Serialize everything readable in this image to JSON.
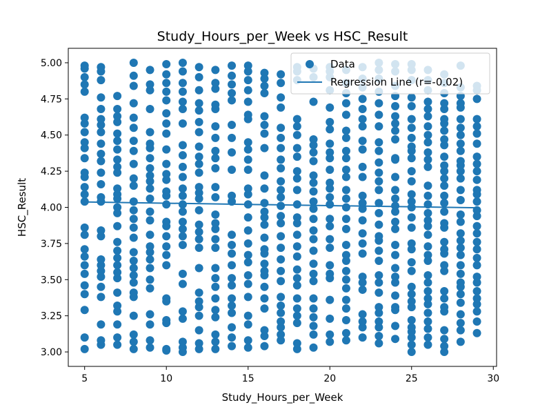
{
  "chart_data": {
    "type": "scatter",
    "title": "Study_Hours_per_Week vs HSC_Result",
    "xlabel": "Study_Hours_per_Week",
    "ylabel": "HSC_Result",
    "xlim": [
      4.0,
      30.2
    ],
    "ylim": [
      2.9,
      5.1
    ],
    "xticks": [
      5,
      10,
      15,
      20,
      25,
      30
    ],
    "yticks": [
      3.0,
      3.25,
      3.5,
      3.75,
      4.0,
      4.25,
      4.5,
      4.75,
      5.0
    ],
    "grid": false,
    "legend_position": "upper-right",
    "series": [
      {
        "name": "Data",
        "kind": "scatter",
        "color": "#1f77b4",
        "x_values": [
          5,
          6,
          7,
          8,
          9,
          10,
          11,
          12,
          13,
          14,
          15,
          16,
          17,
          18,
          19,
          20,
          21,
          22,
          23,
          24,
          25,
          26,
          27,
          28,
          29
        ],
        "y_values_by_x": {
          "5": [
            3.02,
            3.1,
            3.29,
            3.4,
            3.46,
            3.54,
            3.6,
            3.66,
            3.71,
            3.81,
            3.86,
            4.04,
            4.09,
            4.14,
            4.21,
            4.24,
            4.34,
            4.41,
            4.45,
            4.52,
            4.58,
            4.62,
            4.8,
            4.85,
            4.9,
            4.96,
            4.98
          ],
          "6": [
            3.05,
            3.08,
            3.19,
            3.38,
            3.45,
            3.52,
            3.56,
            3.6,
            3.64,
            3.8,
            3.84,
            4.04,
            4.07,
            4.16,
            4.24,
            4.32,
            4.37,
            4.44,
            4.52,
            4.57,
            4.61,
            4.68,
            4.76,
            4.88,
            4.94,
            4.97
          ],
          "7": [
            3.05,
            3.1,
            3.19,
            3.28,
            3.32,
            3.41,
            3.51,
            3.55,
            3.6,
            3.65,
            3.7,
            3.76,
            3.87,
            3.96,
            4.0,
            4.06,
            4.09,
            4.13,
            4.24,
            4.28,
            4.33,
            4.4,
            4.46,
            4.51,
            4.59,
            4.63,
            4.68,
            4.77
          ],
          "8": [
            3.02,
            3.07,
            3.12,
            3.25,
            3.38,
            3.41,
            3.48,
            3.53,
            3.58,
            3.63,
            3.69,
            3.79,
            3.86,
            3.92,
            3.98,
            4.04,
            4.15,
            4.2,
            4.3,
            4.39,
            4.46,
            4.55,
            4.62,
            4.72,
            4.84,
            4.91,
            5.0
          ],
          "9": [
            3.03,
            3.08,
            3.19,
            3.26,
            3.44,
            3.5,
            3.58,
            3.64,
            3.69,
            3.73,
            3.81,
            3.91,
            3.97,
            4.06,
            4.13,
            4.18,
            4.22,
            4.27,
            4.34,
            4.41,
            4.44,
            4.52,
            4.68,
            4.81,
            4.85,
            4.95
          ],
          "10": [
            3.01,
            3.02,
            3.2,
            3.22,
            3.35,
            3.37,
            3.6,
            3.67,
            3.73,
            3.8,
            3.87,
            3.9,
            4.02,
            4.08,
            4.11,
            4.19,
            4.23,
            4.3,
            4.4,
            4.51,
            4.58,
            4.65,
            4.74,
            4.8,
            4.86,
            4.92,
            4.99
          ],
          "11": [
            3.0,
            3.03,
            3.07,
            3.23,
            3.28,
            3.47,
            3.54,
            3.74,
            3.8,
            3.85,
            3.9,
            3.97,
            4.02,
            4.08,
            4.13,
            4.21,
            4.28,
            4.36,
            4.43,
            4.58,
            4.68,
            4.73,
            4.8,
            4.86,
            4.94,
            5.0
          ],
          "12": [
            3.02,
            3.06,
            3.15,
            3.25,
            3.31,
            3.35,
            3.41,
            3.58,
            3.72,
            3.78,
            3.83,
            3.88,
            3.98,
            4.06,
            4.1,
            4.14,
            4.24,
            4.3,
            4.35,
            4.42,
            4.52,
            4.59,
            4.67,
            4.72,
            4.81,
            4.9,
            4.97
          ],
          "13": [
            3.02,
            3.07,
            3.12,
            3.24,
            3.29,
            3.37,
            3.45,
            3.51,
            3.58,
            3.72,
            3.78,
            3.85,
            3.89,
            3.95,
            4.07,
            4.14,
            4.27,
            4.34,
            4.39,
            4.48,
            4.56,
            4.68,
            4.71,
            4.82,
            4.86,
            4.95
          ],
          "14": [
            3.04,
            3.1,
            3.17,
            3.27,
            3.32,
            3.37,
            3.46,
            3.51,
            3.6,
            3.68,
            3.74,
            3.81,
            4.04,
            4.08,
            4.26,
            4.38,
            4.48,
            4.57,
            4.74,
            4.79,
            4.85,
            4.91,
            4.98
          ],
          "15": [
            3.03,
            3.08,
            3.19,
            3.25,
            3.38,
            3.47,
            3.53,
            3.62,
            3.67,
            3.75,
            3.84,
            3.93,
            4.02,
            4.09,
            4.13,
            4.26,
            4.33,
            4.4,
            4.45,
            4.61,
            4.64,
            4.73,
            4.81,
            4.88,
            4.94,
            4.98
          ],
          "16": [
            3.04,
            3.11,
            3.15,
            3.3,
            3.37,
            3.45,
            3.53,
            3.56,
            3.61,
            3.68,
            3.71,
            3.79,
            3.88,
            3.93,
            3.97,
            4.03,
            4.13,
            4.22,
            4.41,
            4.51,
            4.57,
            4.63,
            4.79,
            4.84,
            4.89,
            4.93
          ],
          "17": [
            3.08,
            3.12,
            3.17,
            3.21,
            3.27,
            3.32,
            3.38,
            3.49,
            3.56,
            3.64,
            3.72,
            3.8,
            3.89,
            3.94,
            4.01,
            4.07,
            4.12,
            4.18,
            4.27,
            4.33,
            4.41,
            4.48,
            4.55,
            4.69,
            4.76,
            4.86,
            4.92
          ],
          "18": [
            3.02,
            3.06,
            3.2,
            3.25,
            3.3,
            3.37,
            3.46,
            3.51,
            3.57,
            3.66,
            3.73,
            3.81,
            3.89,
            3.93,
            4.02,
            4.12,
            4.2,
            4.25,
            4.35,
            4.41,
            4.5,
            4.56,
            4.61,
            4.88,
            4.94,
            4.97
          ],
          "19": [
            3.03,
            3.12,
            3.18,
            3.24,
            3.3,
            3.37,
            3.49,
            3.54,
            3.61,
            3.7,
            3.78,
            3.84,
            3.92,
            3.99,
            4.04,
            4.11,
            4.17,
            4.22,
            4.32,
            4.38,
            4.43,
            4.47,
            4.73,
            4.9,
            4.96
          ],
          "20": [
            3.07,
            3.12,
            3.23,
            3.36,
            3.51,
            3.54,
            3.6,
            3.72,
            3.78,
            3.87,
            3.92,
            4.02,
            4.07,
            4.13,
            4.17,
            4.26,
            4.34,
            4.38,
            4.44,
            4.54,
            4.59,
            4.69,
            4.81,
            4.9,
            4.94,
            4.97
          ],
          "21": [
            3.08,
            3.13,
            3.22,
            3.3,
            3.36,
            3.44,
            3.5,
            3.56,
            3.63,
            3.67,
            3.74,
            3.85,
            3.92,
            4.0,
            4.06,
            4.12,
            4.21,
            4.26,
            4.34,
            4.39,
            4.48,
            4.53,
            4.64,
            4.72,
            4.79,
            4.86,
            4.95
          ],
          "22": [
            3.1,
            3.17,
            3.21,
            3.26,
            3.43,
            3.48,
            3.52,
            3.68,
            3.75,
            3.82,
            3.91,
            3.99,
            4.03,
            4.08,
            4.21,
            4.28,
            4.4,
            4.46,
            4.56,
            4.61,
            4.68,
            4.75,
            4.83,
            4.89,
            4.97
          ],
          "23": [
            3.06,
            3.11,
            3.17,
            3.21,
            3.27,
            3.31,
            3.41,
            3.48,
            3.53,
            3.63,
            3.7,
            3.77,
            3.8,
            3.88,
            3.96,
            4.03,
            4.12,
            4.18,
            4.24,
            4.31,
            4.39,
            4.45,
            4.56,
            4.64,
            4.72,
            4.8,
            4.89,
            4.95,
            5.0
          ],
          "24": [
            3.09,
            3.18,
            3.29,
            3.31,
            3.39,
            3.48,
            3.52,
            3.58,
            3.67,
            3.74,
            3.85,
            3.9,
            3.97,
            4.01,
            4.06,
            4.12,
            4.21,
            4.33,
            4.34,
            4.47,
            4.53,
            4.58,
            4.63,
            4.7,
            4.77,
            4.84,
            4.94,
            4.99
          ],
          "25": [
            3.0,
            3.05,
            3.1,
            3.14,
            3.17,
            3.22,
            3.31,
            3.35,
            3.4,
            3.45,
            3.56,
            3.62,
            3.71,
            3.75,
            3.86,
            3.93,
            4.0,
            4.04,
            4.09,
            4.18,
            4.25,
            4.34,
            4.39,
            4.42,
            4.48,
            4.55,
            4.61,
            4.7,
            4.76,
            4.88,
            4.95,
            4.99
          ],
          "26": [
            3.05,
            3.1,
            3.16,
            3.21,
            3.27,
            3.33,
            3.37,
            3.42,
            3.48,
            3.53,
            3.63,
            3.67,
            3.73,
            3.81,
            3.87,
            3.91,
            3.96,
            4.02,
            4.08,
            4.15,
            4.28,
            4.33,
            4.38,
            4.45,
            4.5,
            4.56,
            4.63,
            4.68,
            4.73,
            4.81,
            4.88,
            4.95
          ],
          "27": [
            3.0,
            3.04,
            3.09,
            3.15,
            3.28,
            3.31,
            3.37,
            3.42,
            3.56,
            3.6,
            3.68,
            3.71,
            3.76,
            3.86,
            3.89,
            3.97,
            4.03,
            4.08,
            4.15,
            4.2,
            4.25,
            4.29,
            4.35,
            4.43,
            4.47,
            4.53,
            4.58,
            4.61,
            4.68,
            4.72,
            4.79,
            4.86,
            4.92
          ],
          "28": [
            3.07,
            3.15,
            3.2,
            3.26,
            3.34,
            3.4,
            3.45,
            3.48,
            3.54,
            3.6,
            3.67,
            3.72,
            3.77,
            3.82,
            3.9,
            3.95,
            4.05,
            4.12,
            4.2,
            4.25,
            4.29,
            4.32,
            4.39,
            4.44,
            4.5,
            4.55,
            4.61,
            4.69,
            4.72,
            4.77,
            4.83,
            4.98
          ],
          "29": [
            3.13,
            3.21,
            3.28,
            3.33,
            3.37,
            3.42,
            3.48,
            3.52,
            3.6,
            3.65,
            3.71,
            3.76,
            3.82,
            3.87,
            3.94,
            3.98,
            4.04,
            4.09,
            4.12,
            4.19,
            4.25,
            4.3,
            4.35,
            4.44,
            4.51,
            4.56,
            4.61,
            4.75,
            4.81,
            4.84
          ]
        }
      },
      {
        "name": "Regression Line (r=-0.02)",
        "kind": "line",
        "color": "#1f77b4",
        "x": [
          5,
          29
        ],
        "y": [
          4.037,
          3.997
        ]
      }
    ]
  }
}
